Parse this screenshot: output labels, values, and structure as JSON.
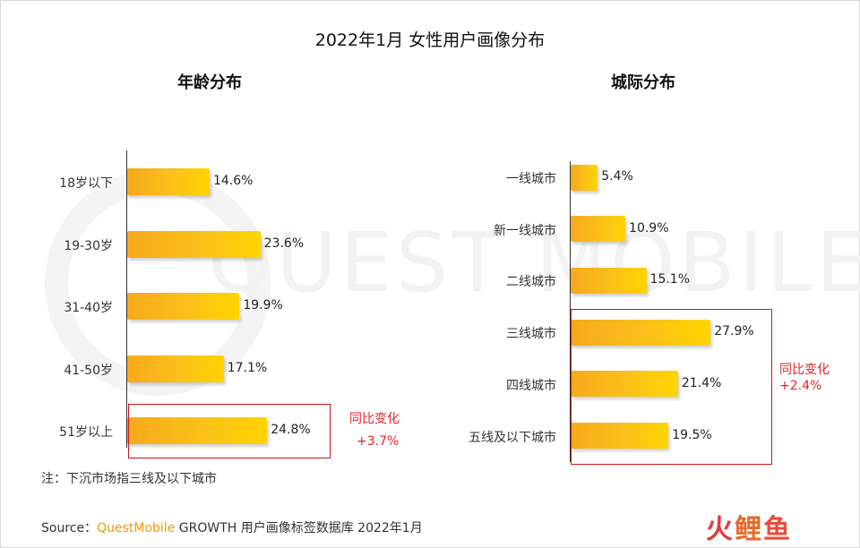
{
  "title": "2022年1月 女性用户画像分布",
  "watermark": "QUEST MOBILE",
  "chart_data": [
    {
      "type": "bar",
      "orientation": "horizontal",
      "title": "年龄分布",
      "categories": [
        "18岁以下",
        "19-30岁",
        "31-40岁",
        "41-50岁",
        "51岁以上"
      ],
      "values": [
        14.6,
        23.6,
        19.9,
        17.1,
        24.8
      ],
      "value_labels": [
        "14.6%",
        "23.6%",
        "19.9%",
        "17.1%",
        "24.8%"
      ],
      "unit": "%",
      "highlight": {
        "categories": [
          "51岁以上"
        ],
        "label": "同比变化",
        "change": "+3.7%"
      }
    },
    {
      "type": "bar",
      "orientation": "horizontal",
      "title": "城际分布",
      "categories": [
        "一线城市",
        "新一线城市",
        "二线城市",
        "三线城市",
        "四线城市",
        "五线及以下城市"
      ],
      "values": [
        5.4,
        10.9,
        15.1,
        27.9,
        21.4,
        19.5
      ],
      "value_labels": [
        "5.4%",
        "10.9%",
        "15.1%",
        "27.9%",
        "21.4%",
        "19.5%"
      ],
      "unit": "%",
      "highlight": {
        "categories": [
          "三线城市",
          "四线城市",
          "五线及以下城市"
        ],
        "label": "同比变化",
        "change": "+2.4%"
      }
    }
  ],
  "note": "注：下沉市场指三线及以下城市",
  "source": {
    "prefix": "Source：",
    "brand": "QuestMobile",
    "suffix": " GROWTH 用户画像标签数据库 2022年1月"
  },
  "logo": {
    "part1": "火",
    "part2": "鲤",
    "part3": "鱼"
  },
  "colors": {
    "bar_start": "#f7a91c",
    "bar_end": "#ffd400",
    "highlight": "#c8161d",
    "change_text": "#e0242a",
    "brand": "#f39800"
  }
}
